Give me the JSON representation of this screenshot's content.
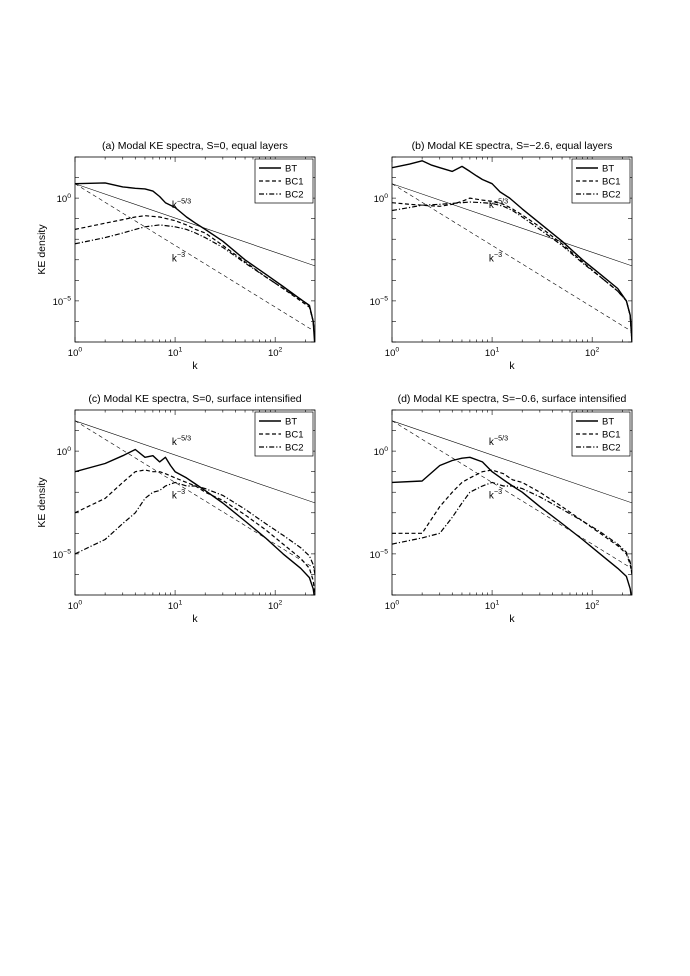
{
  "chart_data": [
    {
      "type": "line",
      "title": "(a) Modal KE spectra, S=0, equal layers",
      "xlabel": "k",
      "ylabel": "KE density",
      "xscale": "log",
      "yscale": "log",
      "xlim": [
        1,
        250
      ],
      "ylim": [
        1e-07,
        100.0
      ],
      "x_ticks": [
        {
          "value": 1,
          "label": "10^0"
        },
        {
          "value": 10,
          "label": "10^1"
        },
        {
          "value": 100,
          "label": "10^2"
        }
      ],
      "y_ticks": [
        {
          "value": 1,
          "label": "10^0"
        },
        {
          "value": 1e-05,
          "label": "10^-5"
        }
      ],
      "legend": "top-right",
      "grid": false,
      "series": [
        {
          "name": "BT",
          "style": "solid",
          "x": [
            1,
            2,
            3,
            4,
            5,
            6,
            7,
            8,
            10,
            13,
            16,
            20,
            30,
            50,
            80,
            120,
            180,
            220,
            240,
            250
          ],
          "y": [
            5,
            5.5,
            3.5,
            3,
            2.8,
            2.2,
            1.2,
            0.6,
            0.35,
            0.12,
            0.06,
            0.03,
            0.008,
            0.001,
            0.0002,
            5e-05,
            1.2e-05,
            6e-06,
            1e-06,
            5e-08
          ]
        },
        {
          "name": "BC1",
          "style": "dashed",
          "x": [
            1,
            2,
            3,
            4,
            5,
            7,
            10,
            13,
            16,
            20,
            30,
            50,
            80,
            120,
            180,
            220,
            240,
            250
          ],
          "y": [
            0.03,
            0.06,
            0.09,
            0.12,
            0.14,
            0.12,
            0.08,
            0.05,
            0.03,
            0.02,
            0.005,
            0.0008,
            0.00015,
            4e-05,
            1e-05,
            5e-06,
            1e-06,
            1e-07
          ]
        },
        {
          "name": "BC2",
          "style": "dashdot",
          "x": [
            1,
            2,
            3,
            4,
            5,
            7,
            10,
            13,
            16,
            20,
            30,
            50,
            80,
            120,
            180,
            220,
            240,
            250
          ],
          "y": [
            0.006,
            0.012,
            0.02,
            0.03,
            0.04,
            0.05,
            0.04,
            0.03,
            0.02,
            0.012,
            0.004,
            0.0007,
            0.00015,
            4e-05,
            1.2e-05,
            6e-06,
            1e-06,
            1e-07
          ]
        }
      ],
      "reference_lines": [
        {
          "label": "k^-5/3",
          "style": "thin-solid",
          "y_at_1": 5,
          "slope": -1.6667
        },
        {
          "label": "k^-3",
          "style": "thin-dashed",
          "y_at_1": 5,
          "slope": -3
        }
      ]
    },
    {
      "type": "line",
      "title": "(b) Modal KE spectra, S=−2.6, equal layers",
      "xlabel": "k",
      "ylabel": "",
      "xscale": "log",
      "yscale": "log",
      "xlim": [
        1,
        250
      ],
      "ylim": [
        1e-07,
        100.0
      ],
      "x_ticks": [
        {
          "value": 1,
          "label": "10^0"
        },
        {
          "value": 10,
          "label": "10^1"
        },
        {
          "value": 100,
          "label": "10^2"
        }
      ],
      "y_ticks": [
        {
          "value": 1,
          "label": "10^0"
        },
        {
          "value": 1e-05,
          "label": "10^-5"
        }
      ],
      "legend": "top-right",
      "grid": false,
      "series": [
        {
          "name": "BT",
          "style": "solid",
          "x": [
            1,
            1.5,
            2,
            2.5,
            3,
            4,
            5,
            6,
            7,
            8,
            10,
            12,
            15,
            20,
            30,
            50,
            80,
            120,
            180,
            220,
            240,
            250
          ],
          "y": [
            30,
            45,
            65,
            40,
            30,
            20,
            35,
            20,
            12,
            8,
            5,
            2,
            1,
            0.3,
            0.06,
            0.008,
            0.001,
            0.0002,
            4e-05,
            1e-05,
            2e-06,
            1e-07
          ]
        },
        {
          "name": "BC1",
          "style": "dashed",
          "x": [
            1,
            1.5,
            2,
            3,
            4,
            5,
            6,
            8,
            10,
            13,
            16,
            20,
            30,
            50,
            80,
            120,
            180,
            220,
            240,
            250
          ],
          "y": [
            0.6,
            0.5,
            0.45,
            0.4,
            0.5,
            0.7,
            1,
            0.8,
            0.7,
            0.5,
            0.3,
            0.15,
            0.04,
            0.006,
            0.0008,
            0.00015,
            3e-05,
            1e-05,
            2e-06,
            1e-07
          ]
        },
        {
          "name": "BC2",
          "style": "dashdot",
          "x": [
            1,
            1.5,
            2,
            3,
            4,
            5,
            6,
            8,
            10,
            13,
            16,
            20,
            30,
            50,
            80,
            120,
            180,
            220,
            240,
            250
          ],
          "y": [
            0.25,
            0.35,
            0.45,
            0.5,
            0.55,
            0.6,
            0.65,
            0.6,
            0.55,
            0.4,
            0.25,
            0.12,
            0.03,
            0.005,
            0.0007,
            0.00015,
            3e-05,
            1e-05,
            2e-06,
            1e-07
          ]
        }
      ],
      "reference_lines": [
        {
          "label": "k^-5/3",
          "style": "thin-solid",
          "y_at_1": 5,
          "slope": -1.6667
        },
        {
          "label": "k^-3",
          "style": "thin-dashed",
          "y_at_1": 5,
          "slope": -3
        }
      ]
    },
    {
      "type": "line",
      "title": "(c) Modal KE spectra, S=0, surface intensified",
      "xlabel": "k",
      "ylabel": "KE density",
      "xscale": "log",
      "yscale": "log",
      "xlim": [
        1,
        250
      ],
      "ylim": [
        1e-07,
        100.0
      ],
      "x_ticks": [
        {
          "value": 1,
          "label": "10^0"
        },
        {
          "value": 10,
          "label": "10^1"
        },
        {
          "value": 100,
          "label": "10^2"
        }
      ],
      "y_ticks": [
        {
          "value": 1,
          "label": "10^0"
        },
        {
          "value": 1e-05,
          "label": "10^-5"
        }
      ],
      "legend": "top-right",
      "grid": false,
      "series": [
        {
          "name": "BT",
          "style": "solid",
          "x": [
            1,
            2,
            3,
            4,
            5,
            6,
            7,
            8,
            9,
            10,
            13,
            16,
            20,
            30,
            50,
            80,
            120,
            180,
            220,
            240,
            250
          ],
          "y": [
            0.1,
            0.25,
            0.6,
            1.2,
            0.5,
            0.6,
            0.3,
            0.5,
            0.2,
            0.1,
            0.05,
            0.025,
            0.012,
            0.003,
            0.0004,
            6e-05,
            1e-05,
            2e-06,
            7e-07,
            2e-07,
            5e-08
          ]
        },
        {
          "name": "BC1",
          "style": "dashed",
          "x": [
            1,
            2,
            3,
            4,
            5,
            6,
            7,
            8,
            10,
            13,
            16,
            20,
            30,
            50,
            80,
            120,
            180,
            220,
            240,
            250
          ],
          "y": [
            0.001,
            0.005,
            0.03,
            0.1,
            0.12,
            0.1,
            0.1,
            0.08,
            0.05,
            0.03,
            0.02,
            0.01,
            0.004,
            0.0008,
            0.00015,
            3e-05,
            6e-06,
            2e-06,
            5e-07,
            1e-07
          ]
        },
        {
          "name": "BC2",
          "style": "dashdot",
          "x": [
            1,
            2,
            3,
            4,
            5,
            6,
            7,
            8,
            10,
            13,
            16,
            20,
            30,
            50,
            80,
            120,
            180,
            220,
            240,
            250
          ],
          "y": [
            1e-05,
            5e-05,
            0.0003,
            0.001,
            0.005,
            0.01,
            0.012,
            0.02,
            0.03,
            0.02,
            0.02,
            0.015,
            0.007,
            0.0015,
            0.0003,
            8e-05,
            2e-05,
            8e-06,
            3e-06,
            1e-06
          ]
        }
      ],
      "reference_lines": [
        {
          "label": "k^-5/3",
          "style": "thin-solid",
          "y_at_1": 30,
          "slope": -1.6667
        },
        {
          "label": "k^-3",
          "style": "thin-dashed",
          "y_at_1": 30,
          "slope": -3
        }
      ]
    },
    {
      "type": "line",
      "title": "(d) Modal KE spectra, S=−0.6, surface intensified",
      "xlabel": "k",
      "ylabel": "",
      "xscale": "log",
      "yscale": "log",
      "xlim": [
        1,
        250
      ],
      "ylim": [
        1e-07,
        100.0
      ],
      "x_ticks": [
        {
          "value": 1,
          "label": "10^0"
        },
        {
          "value": 10,
          "label": "10^1"
        },
        {
          "value": 100,
          "label": "10^2"
        }
      ],
      "y_ticks": [
        {
          "value": 1,
          "label": "10^0"
        },
        {
          "value": 1e-05,
          "label": "10^-5"
        }
      ],
      "legend": "top-right",
      "grid": false,
      "series": [
        {
          "name": "BT",
          "style": "solid",
          "x": [
            1,
            2,
            3,
            4,
            5,
            6,
            8,
            10,
            13,
            16,
            20,
            30,
            50,
            80,
            120,
            180,
            220,
            240,
            250
          ],
          "y": [
            0.03,
            0.035,
            0.2,
            0.35,
            0.45,
            0.5,
            0.3,
            0.1,
            0.04,
            0.02,
            0.01,
            0.002,
            0.0003,
            5e-05,
            1e-05,
            2e-06,
            8e-07,
            2e-07,
            5e-08
          ]
        },
        {
          "name": "BC1",
          "style": "dashed",
          "x": [
            1,
            2,
            3,
            4,
            5,
            6,
            8,
            10,
            13,
            16,
            20,
            30,
            50,
            80,
            120,
            180,
            220,
            240,
            250
          ],
          "y": [
            0.0001,
            0.0001,
            0.002,
            0.01,
            0.03,
            0.05,
            0.1,
            0.12,
            0.08,
            0.04,
            0.03,
            0.01,
            0.002,
            0.0004,
            0.0001,
            2.5e-05,
            1e-05,
            3e-06,
            1e-06
          ]
        },
        {
          "name": "BC2",
          "style": "dashdot",
          "x": [
            1,
            2,
            3,
            4,
            5,
            6,
            8,
            10,
            13,
            16,
            20,
            30,
            50,
            80,
            120,
            180,
            220,
            240,
            250
          ],
          "y": [
            3e-05,
            6e-05,
            0.0001,
            0.0006,
            0.003,
            0.01,
            0.02,
            0.03,
            0.02,
            0.02,
            0.015,
            0.006,
            0.0015,
            0.0004,
            0.00012,
            3e-05,
            1.2e-05,
            4e-06,
            1e-06
          ]
        }
      ],
      "reference_lines": [
        {
          "label": "k^-5/3",
          "style": "thin-solid",
          "y_at_1": 30,
          "slope": -1.6667
        },
        {
          "label": "k^-3",
          "style": "thin-dashed",
          "y_at_1": 30,
          "slope": -3
        }
      ]
    }
  ]
}
